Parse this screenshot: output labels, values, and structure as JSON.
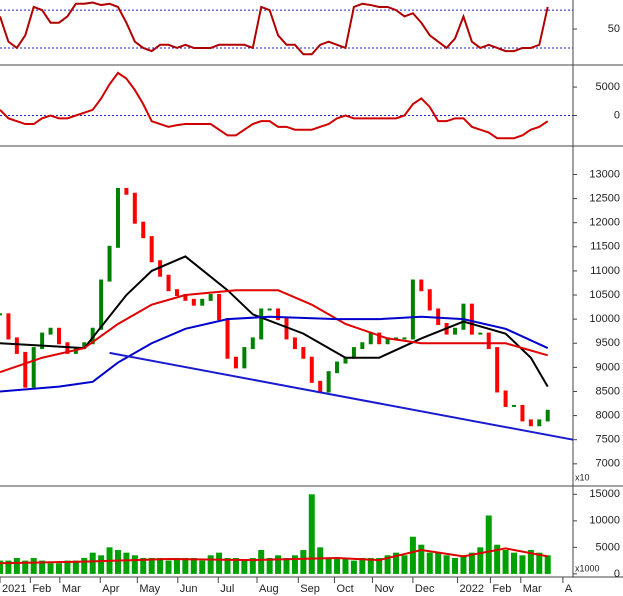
{
  "chart_data": [
    {
      "type": "line",
      "xlim": [
        0,
        68
      ],
      "ylim": [
        -7,
        96
      ],
      "yticks": [
        50
      ],
      "hlines": [
        20,
        80
      ],
      "x": [
        0,
        1,
        2,
        3,
        4,
        5,
        6,
        7,
        8,
        9,
        10,
        11,
        12,
        13,
        14,
        15,
        16,
        17,
        18,
        19,
        20,
        21,
        22,
        23,
        24,
        25,
        26,
        27,
        28,
        29,
        30,
        31,
        32,
        33,
        34,
        35,
        36,
        37,
        38,
        39,
        40,
        41,
        42,
        43,
        44,
        45,
        46,
        47,
        48,
        49,
        50,
        51,
        52,
        53,
        54,
        55,
        56,
        57,
        58,
        59,
        60,
        61,
        62,
        63,
        64,
        65
      ],
      "series": [
        {
          "color": "#b00000",
          "values": [
            70,
            30,
            20,
            40,
            85,
            80,
            60,
            60,
            70,
            90,
            90,
            92,
            88,
            90,
            85,
            60,
            30,
            20,
            15,
            25,
            25,
            20,
            25,
            20,
            20,
            20,
            25,
            25,
            25,
            25,
            20,
            85,
            80,
            40,
            25,
            25,
            10,
            10,
            25,
            30,
            25,
            20,
            85,
            90,
            88,
            85,
            85,
            80,
            70,
            75,
            60,
            40,
            30,
            20,
            35,
            70,
            30,
            20,
            25,
            20,
            15,
            15,
            20,
            20,
            25,
            85
          ]
        }
      ]
    },
    {
      "type": "line",
      "xlim": [
        0,
        68
      ],
      "ylim": [
        -5370,
        8890
      ],
      "yticks": [
        0,
        5000
      ],
      "hlines": [
        0
      ],
      "x": [
        0,
        1,
        2,
        3,
        4,
        5,
        6,
        7,
        8,
        9,
        10,
        11,
        12,
        13,
        14,
        15,
        16,
        17,
        18,
        19,
        20,
        21,
        22,
        23,
        24,
        25,
        26,
        27,
        28,
        29,
        30,
        31,
        32,
        33,
        34,
        35,
        36,
        37,
        38,
        39,
        40,
        41,
        42,
        43,
        44,
        45,
        46,
        47,
        48,
        49,
        50,
        51,
        52,
        53,
        54,
        55,
        56,
        57,
        58,
        59,
        60,
        61,
        62,
        63,
        64,
        65
      ],
      "series": [
        {
          "color": "#d00000",
          "values": [
            1000,
            -500,
            -1000,
            -1500,
            -1500,
            -500,
            0,
            -500,
            -500,
            0,
            500,
            1000,
            3000,
            5500,
            7500,
            6500,
            4500,
            2000,
            -1000,
            -1500,
            -2000,
            -1700,
            -1500,
            -1500,
            -1500,
            -1500,
            -2500,
            -3500,
            -3500,
            -2500,
            -1500,
            -1000,
            -1000,
            -2000,
            -2000,
            -2500,
            -2500,
            -2500,
            -2000,
            -1500,
            -500,
            0,
            -500,
            -500,
            -500,
            -500,
            -500,
            -500,
            0,
            2000,
            3000,
            1500,
            -1000,
            -1000,
            -500,
            -500,
            -2000,
            -2500,
            -3000,
            -4000,
            -4000,
            -4000,
            -3500,
            -2500,
            -2000,
            -1000
          ]
        }
      ]
    },
    {
      "type": "price",
      "xlim": [
        0,
        68
      ],
      "ylim": [
        6540,
        13590
      ],
      "unit_label": "x10",
      "yticks": [
        7000,
        7500,
        8000,
        8500,
        9000,
        9500,
        10000,
        10500,
        11000,
        11500,
        12000,
        12500,
        13000
      ],
      "x": [
        0,
        1,
        2,
        3,
        4,
        5,
        6,
        7,
        8,
        9,
        10,
        11,
        12,
        13,
        14,
        15,
        16,
        17,
        18,
        19,
        20,
        21,
        22,
        23,
        24,
        25,
        26,
        27,
        28,
        29,
        30,
        31,
        32,
        33,
        34,
        35,
        36,
        37,
        38,
        39,
        40,
        41,
        42,
        43,
        44,
        45,
        46,
        47,
        48,
        49,
        50,
        51,
        52,
        53,
        54,
        55,
        56,
        57,
        58,
        59,
        60,
        61,
        62,
        63,
        64,
        65
      ],
      "values": [
        10100,
        9600,
        9300,
        8600,
        9400,
        9700,
        9800,
        9500,
        9300,
        9400,
        9500,
        9800,
        10800,
        11500,
        12700,
        12600,
        12000,
        11700,
        11200,
        10900,
        10600,
        10500,
        10400,
        10300,
        10400,
        10500,
        10000,
        9200,
        9000,
        9400,
        9600,
        10200,
        10200,
        10000,
        9600,
        9400,
        9200,
        8700,
        8500,
        8900,
        9100,
        9200,
        9400,
        9500,
        9700,
        9500,
        9600,
        9600,
        9600,
        10800,
        10600,
        10200,
        9900,
        9700,
        9800,
        10300,
        9700,
        9700,
        9400,
        8500,
        8200,
        8200,
        7900,
        7800,
        7900,
        8100
      ],
      "up_color": "#008000",
      "down_color": "#ff0000",
      "series": [
        {
          "color": "#000000",
          "x": [
            0,
            5,
            10,
            15,
            18,
            22,
            27,
            30,
            36,
            41,
            45,
            50,
            55,
            60,
            63,
            65
          ],
          "values": [
            9500,
            9450,
            9400,
            10500,
            11000,
            11300,
            10600,
            10100,
            9700,
            9200,
            9200,
            9600,
            9950,
            9700,
            9200,
            8600
          ]
        },
        {
          "color": "#e00000",
          "x": [
            0,
            5,
            10,
            14,
            18,
            22,
            28,
            33,
            37,
            41,
            46,
            50,
            55,
            60,
            65
          ],
          "values": [
            8900,
            9200,
            9400,
            9900,
            10300,
            10500,
            10600,
            10600,
            10300,
            9900,
            9600,
            9500,
            9500,
            9500,
            9250
          ]
        },
        {
          "color": "#0000cc",
          "x": [
            0,
            7,
            11,
            14,
            18,
            22,
            27,
            32,
            40,
            45,
            50,
            55,
            60,
            65
          ],
          "values": [
            8500,
            8600,
            8700,
            9100,
            9500,
            9800,
            10000,
            10050,
            10000,
            10000,
            10050,
            10000,
            9800,
            9400
          ]
        },
        {
          "color": "#1a1ad0",
          "x": [
            13,
            68
          ],
          "values": [
            9300,
            7500
          ]
        }
      ]
    },
    {
      "type": "bar",
      "xlim": [
        0,
        68
      ],
      "ylim": [
        -590,
        16570
      ],
      "unit_label": "x1000",
      "color": "#00a000",
      "yticks": [
        0,
        5000,
        10000,
        15000
      ],
      "x": [
        0,
        1,
        2,
        3,
        4,
        5,
        6,
        7,
        8,
        9,
        10,
        11,
        12,
        13,
        14,
        15,
        16,
        17,
        18,
        19,
        20,
        21,
        22,
        23,
        24,
        25,
        26,
        27,
        28,
        29,
        30,
        31,
        32,
        33,
        34,
        35,
        36,
        37,
        38,
        39,
        40,
        41,
        42,
        43,
        44,
        45,
        46,
        47,
        48,
        49,
        50,
        51,
        52,
        53,
        54,
        55,
        56,
        57,
        58,
        59,
        60,
        61,
        62,
        63,
        64,
        65
      ],
      "values": [
        2500,
        2500,
        3000,
        2500,
        3000,
        2500,
        2000,
        2000,
        2500,
        2500,
        3000,
        4000,
        3500,
        5000,
        4500,
        4000,
        3500,
        3000,
        3000,
        3000,
        2500,
        3000,
        3000,
        3000,
        2500,
        3500,
        4000,
        3000,
        3000,
        2500,
        3000,
        4500,
        3000,
        3500,
        3000,
        3500,
        4500,
        15000,
        5000,
        3000,
        3000,
        3000,
        2500,
        3000,
        3000,
        3000,
        3500,
        4000,
        3500,
        7000,
        5500,
        4000,
        4000,
        3500,
        3000,
        3500,
        4000,
        5000,
        11000,
        5500,
        4500,
        4000,
        3500,
        4500,
        4000,
        3500
      ],
      "series": [
        {
          "color": "#e00000",
          "x": [
            0,
            10,
            20,
            30,
            40,
            45,
            50,
            55,
            60,
            65
          ],
          "values": [
            2000,
            2300,
            2800,
            2600,
            3000,
            2600,
            4500,
            3300,
            4800,
            3300
          ]
        }
      ],
      "xticks": [
        {
          "value": 0,
          "label": "2021"
        },
        {
          "value": 3.6,
          "label": "Feb"
        },
        {
          "value": 7.1,
          "label": "Mar"
        },
        {
          "value": 11.9,
          "label": "Apr"
        },
        {
          "value": 16.3,
          "label": "May"
        },
        {
          "value": 21.1,
          "label": "Jun"
        },
        {
          "value": 25.9,
          "label": "Jul"
        },
        {
          "value": 30.5,
          "label": "Aug"
        },
        {
          "value": 35.4,
          "label": "Sep"
        },
        {
          "value": 39.7,
          "label": "Oct"
        },
        {
          "value": 44.2,
          "label": "Nov"
        },
        {
          "value": 49,
          "label": "Dec"
        },
        {
          "value": 54.3,
          "label": "2022"
        },
        {
          "value": 58.2,
          "label": "Feb"
        },
        {
          "value": 61.8,
          "label": "Mar"
        },
        {
          "value": 66.8,
          "label": "A"
        }
      ]
    }
  ]
}
